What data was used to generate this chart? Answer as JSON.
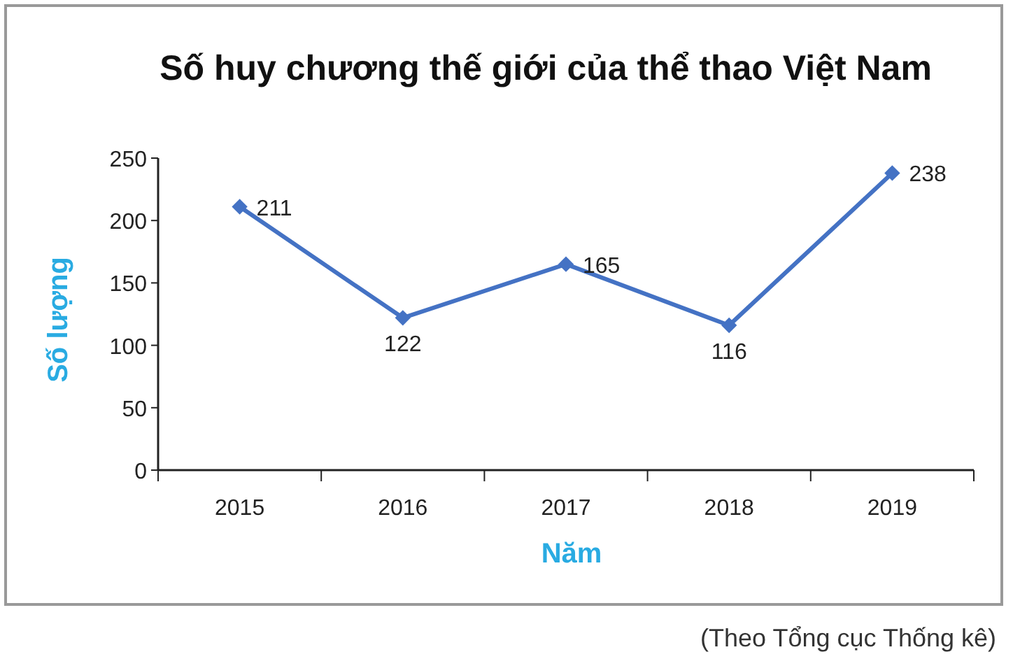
{
  "chart_data": {
    "type": "line",
    "title": "Số huy chương thế giới của thể thao Việt Nam",
    "xlabel": "Năm",
    "ylabel": "Số lượng",
    "categories": [
      "2015",
      "2016",
      "2017",
      "2018",
      "2019"
    ],
    "series": [
      {
        "color": "#4472c4",
        "values": [
          211,
          122,
          165,
          116,
          238
        ]
      }
    ],
    "ylim": [
      0,
      250
    ],
    "yticks": [
      0,
      50,
      100,
      150,
      200,
      250
    ],
    "marker": "diamond",
    "data_labels": true,
    "annotations": [
      "(Theo Tổng cục Thống kê)"
    ]
  }
}
